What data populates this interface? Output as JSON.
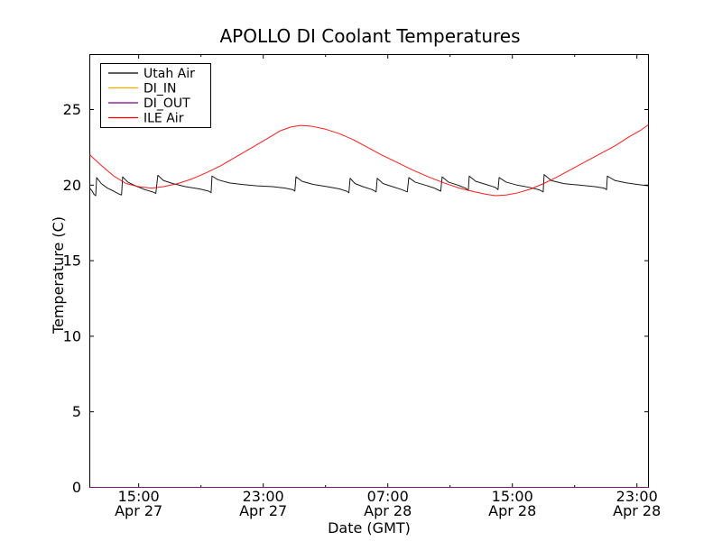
{
  "chart_data": {
    "type": "line",
    "title": "APOLLO DI Coolant Temperatures",
    "xlabel": "Date (GMT)",
    "ylabel": "Temperature (C)",
    "x_unit_note": "hours elapsed since Apr 27 12:00 GMT",
    "xlim": [
      -0.14,
      35.74
    ],
    "ylim": [
      0,
      28.64
    ],
    "grid": false,
    "legend_position": "upper left",
    "y_ticks": [
      0,
      5,
      10,
      15,
      20,
      25
    ],
    "x_ticks": [
      {
        "t": 3,
        "time": "15:00",
        "date": "Apr 27"
      },
      {
        "t": 11,
        "time": "23:00",
        "date": "Apr 27"
      },
      {
        "t": 19,
        "time": "07:00",
        "date": "Apr 28"
      },
      {
        "t": 27,
        "time": "15:00",
        "date": "Apr 28"
      },
      {
        "t": 35,
        "time": "23:00",
        "date": "Apr 28"
      }
    ],
    "x_minor_ticks": [
      7,
      15,
      23,
      31
    ],
    "series": [
      {
        "name": "Utah Air",
        "color": "#000000",
        "points": [
          [
            -0.14,
            19.8
          ],
          [
            0.02,
            19.6
          ],
          [
            0.12,
            19.4
          ],
          [
            0.24,
            19.3
          ],
          [
            0.3,
            20.5
          ],
          [
            0.6,
            20.1
          ],
          [
            1.0,
            19.8
          ],
          [
            1.4,
            19.6
          ],
          [
            1.75,
            19.4
          ],
          [
            1.9,
            19.35
          ],
          [
            1.97,
            20.55
          ],
          [
            2.3,
            20.2
          ],
          [
            2.8,
            19.95
          ],
          [
            3.4,
            19.7
          ],
          [
            3.9,
            19.55
          ],
          [
            4.1,
            19.45
          ],
          [
            4.23,
            20.65
          ],
          [
            4.6,
            20.3
          ],
          [
            5.2,
            20.1
          ],
          [
            6.0,
            19.9
          ],
          [
            6.9,
            19.75
          ],
          [
            7.5,
            19.6
          ],
          [
            7.65,
            19.5
          ],
          [
            7.71,
            20.6
          ],
          [
            8.1,
            20.35
          ],
          [
            8.8,
            20.15
          ],
          [
            9.6,
            20.05
          ],
          [
            10.6,
            19.95
          ],
          [
            11.6,
            19.9
          ],
          [
            12.4,
            19.8
          ],
          [
            12.9,
            19.7
          ],
          [
            13.03,
            19.6
          ],
          [
            13.1,
            20.55
          ],
          [
            13.5,
            20.25
          ],
          [
            14.2,
            20.05
          ],
          [
            15.1,
            19.9
          ],
          [
            15.9,
            19.75
          ],
          [
            16.35,
            19.6
          ],
          [
            16.5,
            19.5
          ],
          [
            16.58,
            20.45
          ],
          [
            16.9,
            20.1
          ],
          [
            17.4,
            19.9
          ],
          [
            18.0,
            19.7
          ],
          [
            18.25,
            19.55
          ],
          [
            18.32,
            20.45
          ],
          [
            18.7,
            20.1
          ],
          [
            19.3,
            19.9
          ],
          [
            19.9,
            19.7
          ],
          [
            20.25,
            19.55
          ],
          [
            20.35,
            20.5
          ],
          [
            20.75,
            20.2
          ],
          [
            21.4,
            20.0
          ],
          [
            22.0,
            19.8
          ],
          [
            22.4,
            19.6
          ],
          [
            22.49,
            20.55
          ],
          [
            22.9,
            20.2
          ],
          [
            23.5,
            20.0
          ],
          [
            24.0,
            19.8
          ],
          [
            24.17,
            19.65
          ],
          [
            24.23,
            20.6
          ],
          [
            24.65,
            20.25
          ],
          [
            25.3,
            20.05
          ],
          [
            25.9,
            19.85
          ],
          [
            26.08,
            19.7
          ],
          [
            26.15,
            20.5
          ],
          [
            26.6,
            20.2
          ],
          [
            27.3,
            20.0
          ],
          [
            28.1,
            19.85
          ],
          [
            28.7,
            19.7
          ],
          [
            28.98,
            19.55
          ],
          [
            29.04,
            20.7
          ],
          [
            29.5,
            20.3
          ],
          [
            30.3,
            20.1
          ],
          [
            31.3,
            20.0
          ],
          [
            32.3,
            19.9
          ],
          [
            32.9,
            19.8
          ],
          [
            33.05,
            19.7
          ],
          [
            33.1,
            20.6
          ],
          [
            33.6,
            20.3
          ],
          [
            34.3,
            20.15
          ],
          [
            35.0,
            20.05
          ],
          [
            35.74,
            19.95
          ]
        ]
      },
      {
        "name": "DI_IN",
        "color": "#ffa500",
        "points": [
          [
            -0.14,
            0
          ],
          [
            35.74,
            0
          ]
        ]
      },
      {
        "name": "DI_OUT",
        "color": "#800080",
        "points": [
          [
            -0.14,
            0
          ],
          [
            35.74,
            0
          ]
        ]
      },
      {
        "name": "ILE Air",
        "color": "#ff0000",
        "points": [
          [
            -0.14,
            22.0
          ],
          [
            0.6,
            21.3
          ],
          [
            1.4,
            20.6
          ],
          [
            2.2,
            20.1
          ],
          [
            3.0,
            19.9
          ],
          [
            3.8,
            19.8
          ],
          [
            4.6,
            19.9
          ],
          [
            5.5,
            20.1
          ],
          [
            6.4,
            20.4
          ],
          [
            7.3,
            20.8
          ],
          [
            8.3,
            21.3
          ],
          [
            9.3,
            21.9
          ],
          [
            10.3,
            22.5
          ],
          [
            11.3,
            23.1
          ],
          [
            12.1,
            23.6
          ],
          [
            12.8,
            23.85
          ],
          [
            13.4,
            23.95
          ],
          [
            14.1,
            23.9
          ],
          [
            15.0,
            23.7
          ],
          [
            15.9,
            23.4
          ],
          [
            16.8,
            23.0
          ],
          [
            17.7,
            22.5
          ],
          [
            18.6,
            22.0
          ],
          [
            19.6,
            21.5
          ],
          [
            20.6,
            21.0
          ],
          [
            21.6,
            20.55
          ],
          [
            22.6,
            20.15
          ],
          [
            23.6,
            19.8
          ],
          [
            24.6,
            19.55
          ],
          [
            25.3,
            19.4
          ],
          [
            25.9,
            19.3
          ],
          [
            26.6,
            19.35
          ],
          [
            27.4,
            19.5
          ],
          [
            28.2,
            19.75
          ],
          [
            29.0,
            20.1
          ],
          [
            29.8,
            20.5
          ],
          [
            30.7,
            21.0
          ],
          [
            31.6,
            21.5
          ],
          [
            32.6,
            22.05
          ],
          [
            33.6,
            22.6
          ],
          [
            34.5,
            23.2
          ],
          [
            35.2,
            23.6
          ],
          [
            35.74,
            24.0
          ]
        ]
      }
    ]
  }
}
